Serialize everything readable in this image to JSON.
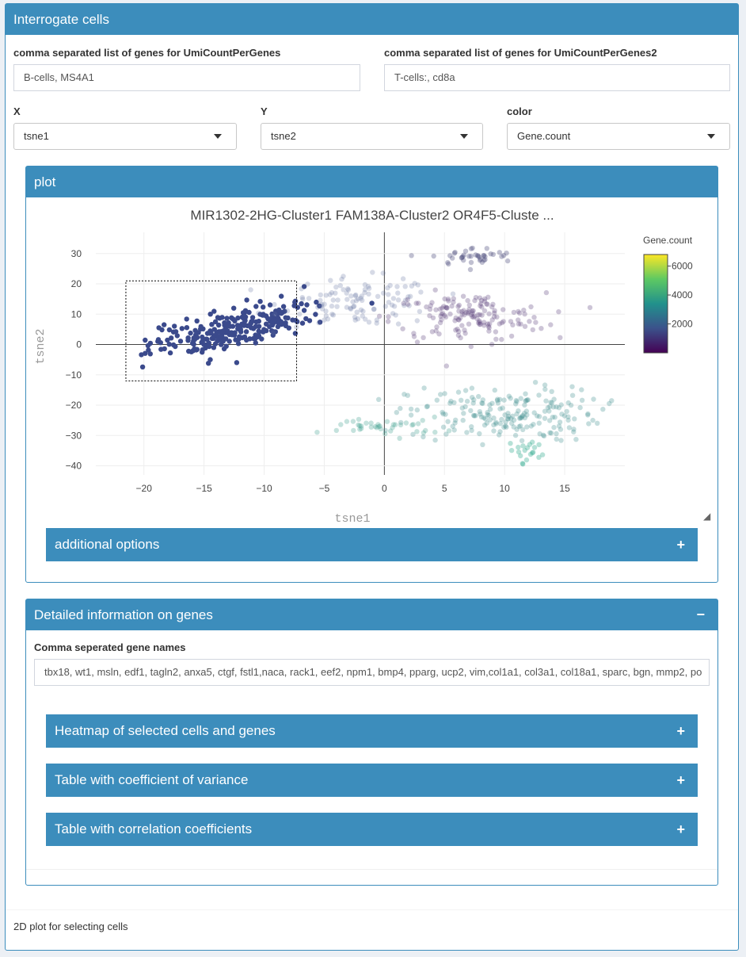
{
  "box": {
    "title": "Interrogate cells",
    "footer": "2D plot for selecting cells"
  },
  "inputs": {
    "genes1": {
      "label": "comma separated list of genes for UmiCountPerGenes",
      "value": "B-cells, MS4A1"
    },
    "genes2": {
      "label": "comma separated list of genes for UmiCountPerGenes2",
      "value": "T-cells:, cd8a"
    }
  },
  "selects": {
    "x": {
      "label": "X",
      "value": "tsne1"
    },
    "y": {
      "label": "Y",
      "value": "tsne2"
    },
    "color": {
      "label": "color",
      "value": "Gene.count"
    }
  },
  "plot_box": {
    "title": "plot",
    "additional_options": "additional options",
    "plus": "+"
  },
  "chart_data": {
    "type": "scatter",
    "title": "MIR1302-2HG-Cluster1 FAM138A-Cluster2 OR4F5-Cluste ...",
    "xlabel": "tsne1",
    "ylabel": "tsne2",
    "xlim": [
      -24,
      20
    ],
    "ylim": [
      -43,
      37
    ],
    "xticks": [
      "−20",
      "−15",
      "−10",
      "−5",
      "0",
      "5",
      "10",
      "15"
    ],
    "xtick_values": [
      -20,
      -15,
      -10,
      -5,
      0,
      5,
      10,
      15
    ],
    "yticks": [
      "30",
      "20",
      "10",
      "0",
      "−10",
      "−20",
      "−30",
      "−40"
    ],
    "ytick_values": [
      30,
      20,
      10,
      0,
      -10,
      -20,
      -30,
      -40
    ],
    "colorbar": {
      "title": "Gene.count",
      "ticks": [
        "6000",
        "4000",
        "2000"
      ],
      "tick_values": [
        6000,
        4000,
        2000
      ],
      "range": [
        0,
        6800
      ]
    },
    "selection_box": {
      "x": [
        -21.5,
        -7.3
      ],
      "y": [
        -12,
        21
      ]
    },
    "clusters": [
      {
        "name": "selected",
        "cx": -12.5,
        "cy": 5,
        "sx": 3.5,
        "sy": 5,
        "n": 260,
        "color": "#3b4a8c",
        "opacity": 1.0
      },
      {
        "name": "top-center",
        "cx": -2,
        "cy": 14,
        "sx": 3.2,
        "sy": 4,
        "n": 110,
        "color": "#5b6a9c",
        "opacity": 0.25
      },
      {
        "name": "top-right-cluster",
        "cx": 7,
        "cy": 9,
        "sx": 3.2,
        "sy": 4,
        "n": 150,
        "color": "#5a3f7a",
        "opacity": 0.3
      },
      {
        "name": "top-right-upper",
        "cx": 7.5,
        "cy": 29,
        "sx": 1.8,
        "sy": 1.5,
        "n": 40,
        "color": "#4a4a7a",
        "opacity": 0.35
      },
      {
        "name": "bottom-right",
        "cx": 10,
        "cy": -23,
        "sx": 4,
        "sy": 4.5,
        "n": 200,
        "color": "#3f8f8f",
        "opacity": 0.3
      },
      {
        "name": "bottom-left-strip",
        "cx": 0,
        "cy": -27,
        "sx": 2.5,
        "sy": 1.5,
        "n": 40,
        "color": "#3f9f8f",
        "opacity": 0.3
      },
      {
        "name": "tail",
        "cx": 12,
        "cy": -35,
        "sx": 0.8,
        "sy": 2,
        "n": 20,
        "color": "#2faa8c",
        "opacity": 0.35
      }
    ]
  },
  "genes_box": {
    "title": "Detailed information on genes",
    "minus": "−",
    "field_label": "Comma seperated gene names",
    "field_value": "tbx18, wt1, msln, edf1, tagln2, anxa5, ctgf, fstl1,naca, rack1, eef2, npm1, bmp4, pparg, ucp2, vim,col1a1, col3a1, col18a1, sparc, bgn, mmp2, po",
    "sections": [
      {
        "label": "Heatmap of selected cells and genes",
        "plus": "+"
      },
      {
        "label": "Table with coefficient of variance",
        "plus": "+"
      },
      {
        "label": "Table with correlation coefficients",
        "plus": "+"
      }
    ]
  }
}
